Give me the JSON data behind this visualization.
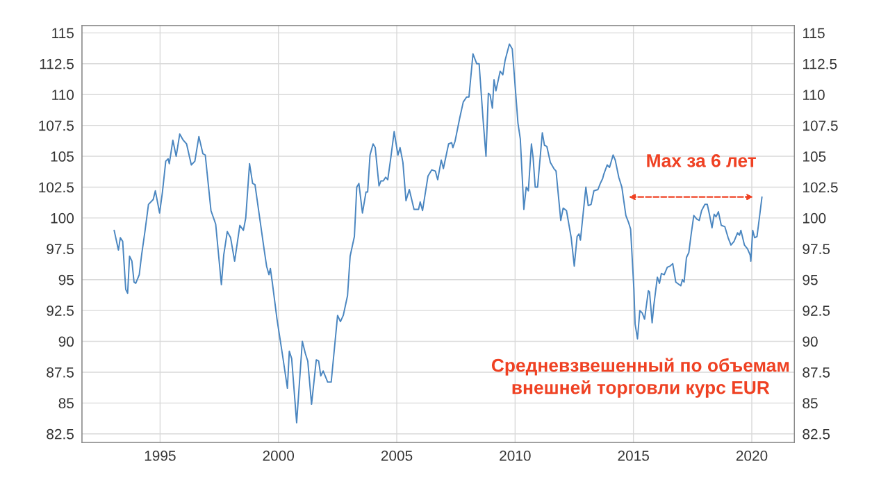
{
  "chart_data": {
    "type": "line",
    "x": [
      1993.06,
      1993.24,
      1993.32,
      1993.42,
      1993.55,
      1993.63,
      1993.71,
      1993.81,
      1993.9,
      1993.97,
      1994.12,
      1994.22,
      1994.36,
      1994.51,
      1994.71,
      1994.8,
      1994.98,
      1995.1,
      1995.24,
      1995.34,
      1995.39,
      1995.54,
      1995.68,
      1995.83,
      1995.98,
      1996.12,
      1996.32,
      1996.47,
      1996.64,
      1996.81,
      1996.91,
      1997.15,
      1997.35,
      1997.59,
      1997.69,
      1997.84,
      1997.98,
      1998.15,
      1998.37,
      1998.52,
      1998.62,
      1998.78,
      1998.91,
      1999.01,
      1999.4,
      1999.5,
      1999.6,
      1999.66,
      1999.74,
      1999.94,
      2000.18,
      2000.38,
      2000.46,
      2000.56,
      2000.77,
      2001.01,
      2001.14,
      2001.24,
      2001.4,
      2001.6,
      2001.7,
      2001.79,
      2001.89,
      2002.08,
      2002.23,
      2002.38,
      2002.5,
      2002.62,
      2002.74,
      2002.92,
      2003.03,
      2003.21,
      2003.31,
      2003.4,
      2003.55,
      2003.7,
      2003.77,
      2003.87,
      2004.0,
      2004.09,
      2004.25,
      2004.33,
      2004.43,
      2004.53,
      2004.62,
      2004.75,
      2004.89,
      2005.05,
      2005.14,
      2005.26,
      2005.39,
      2005.53,
      2005.73,
      2005.92,
      2005.99,
      2006.09,
      2006.32,
      2006.48,
      2006.63,
      2006.73,
      2006.88,
      2006.97,
      2007.19,
      2007.32,
      2007.37,
      2007.46,
      2007.66,
      2007.81,
      2007.95,
      2008.05,
      2008.22,
      2008.38,
      2008.48,
      2008.65,
      2008.77,
      2008.87,
      2008.94,
      2009.04,
      2009.11,
      2009.19,
      2009.37,
      2009.48,
      2009.58,
      2009.76,
      2009.88,
      2009.97,
      2010.12,
      2010.22,
      2010.37,
      2010.47,
      2010.56,
      2010.69,
      2010.76,
      2010.85,
      2010.95,
      2011.15,
      2011.24,
      2011.34,
      2011.49,
      2011.64,
      2011.73,
      2011.93,
      2012.03,
      2012.17,
      2012.37,
      2012.5,
      2012.62,
      2012.7,
      2012.76,
      2012.99,
      2013.09,
      2013.21,
      2013.33,
      2013.5,
      2013.6,
      2013.7,
      2013.74,
      2013.89,
      2013.99,
      2014.14,
      2014.23,
      2014.38,
      2014.51,
      2014.68,
      2014.8,
      2014.88,
      2015.02,
      2015.07,
      2015.17,
      2015.27,
      2015.37,
      2015.47,
      2015.63,
      2015.68,
      2015.79,
      2015.86,
      2016.01,
      2016.1,
      2016.18,
      2016.3,
      2016.43,
      2016.55,
      2016.66,
      2016.79,
      2017.0,
      2017.07,
      2017.14,
      2017.24,
      2017.34,
      2017.44,
      2017.55,
      2017.68,
      2017.78,
      2017.88,
      2018.02,
      2018.12,
      2018.22,
      2018.32,
      2018.41,
      2018.49,
      2018.59,
      2018.71,
      2018.86,
      2019.0,
      2019.12,
      2019.25,
      2019.4,
      2019.48,
      2019.54,
      2019.69,
      2019.82,
      2019.93,
      2019.96,
      2020.04,
      2020.12,
      2020.22,
      2020.32,
      2020.43
    ],
    "series": [
      {
        "color": "#4a86c0",
        "values": [
          99.0,
          97.4,
          98.4,
          98.1,
          94.2,
          93.9,
          96.9,
          96.5,
          94.8,
          94.7,
          95.4,
          97.0,
          98.9,
          101.1,
          101.5,
          102.2,
          100.4,
          102.1,
          104.6,
          104.8,
          104.4,
          106.3,
          105.0,
          106.8,
          106.3,
          106.0,
          104.3,
          104.6,
          106.6,
          105.2,
          105.1,
          100.6,
          99.5,
          94.6,
          97.0,
          98.9,
          98.4,
          96.5,
          99.4,
          99.0,
          100.0,
          104.4,
          102.8,
          102.7,
          97.4,
          96.1,
          95.4,
          95.9,
          94.8,
          91.8,
          88.8,
          86.2,
          89.2,
          88.6,
          83.4,
          90.0,
          89.0,
          88.4,
          84.9,
          88.5,
          88.4,
          87.2,
          87.6,
          86.7,
          86.7,
          89.7,
          92.1,
          91.6,
          92.1,
          93.7,
          96.9,
          98.5,
          102.5,
          102.8,
          100.4,
          102.1,
          102.1,
          105.1,
          106.0,
          105.7,
          102.6,
          103.0,
          103.0,
          103.3,
          103.1,
          104.9,
          107.0,
          105.1,
          105.7,
          104.5,
          101.4,
          102.3,
          100.7,
          100.7,
          101.3,
          100.6,
          103.4,
          103.9,
          103.8,
          103.1,
          104.7,
          104.0,
          106.0,
          106.1,
          105.7,
          106.2,
          108.1,
          109.4,
          109.8,
          109.8,
          113.3,
          112.5,
          112.5,
          107.9,
          105.0,
          110.1,
          110.0,
          108.9,
          111.2,
          110.3,
          111.9,
          111.6,
          112.8,
          114.1,
          113.7,
          111.5,
          107.7,
          106.4,
          100.7,
          102.5,
          102.2,
          106.0,
          104.9,
          102.5,
          102.5,
          106.9,
          105.9,
          105.8,
          104.5,
          104.0,
          103.8,
          99.8,
          100.8,
          100.6,
          98.4,
          96.1,
          98.5,
          98.7,
          98.2,
          102.5,
          101.0,
          101.1,
          102.2,
          102.3,
          102.8,
          103.2,
          103.5,
          104.3,
          104.1,
          105.1,
          104.7,
          103.3,
          102.5,
          100.2,
          99.6,
          99.1,
          94.2,
          91.4,
          90.2,
          92.5,
          92.3,
          91.8,
          94.1,
          94.0,
          91.5,
          92.9,
          95.2,
          94.7,
          95.5,
          95.4,
          96.0,
          96.1,
          96.3,
          94.8,
          94.5,
          95.0,
          94.8,
          96.8,
          97.2,
          98.7,
          100.2,
          99.9,
          99.8,
          100.6,
          101.1,
          101.1,
          100.2,
          99.2,
          100.3,
          100.1,
          100.5,
          99.4,
          99.3,
          98.4,
          97.8,
          98.1,
          98.8,
          98.6,
          99.0,
          97.8,
          97.5,
          97.0,
          96.5,
          99.0,
          98.4,
          98.5,
          100.0,
          101.7
        ]
      }
    ],
    "xlim": [
      1991.7,
      2021.8
    ],
    "ylim": [
      81.8,
      115.6
    ],
    "xticks": [
      1995,
      2000,
      2005,
      2010,
      2015,
      2020
    ],
    "yticks": [
      82.5,
      85,
      87.5,
      90,
      92.5,
      95,
      97.5,
      100,
      102.5,
      105,
      107.5,
      110,
      112.5,
      115
    ],
    "y2lim": [
      81.8,
      115.6
    ],
    "y2ticks": [
      82.5,
      85,
      87.5,
      90,
      92.5,
      95,
      97.5,
      100,
      102.5,
      105,
      107.5,
      110,
      112.5,
      115
    ],
    "grid": true,
    "marker": "none",
    "line_style": "solid",
    "annotations": [
      {
        "text": "Max за 6 лет",
        "x": 2020.43,
        "y": 101.7
      },
      "Средневзвешенный по объемам\nвнешней торговли курс EUR"
    ]
  }
}
